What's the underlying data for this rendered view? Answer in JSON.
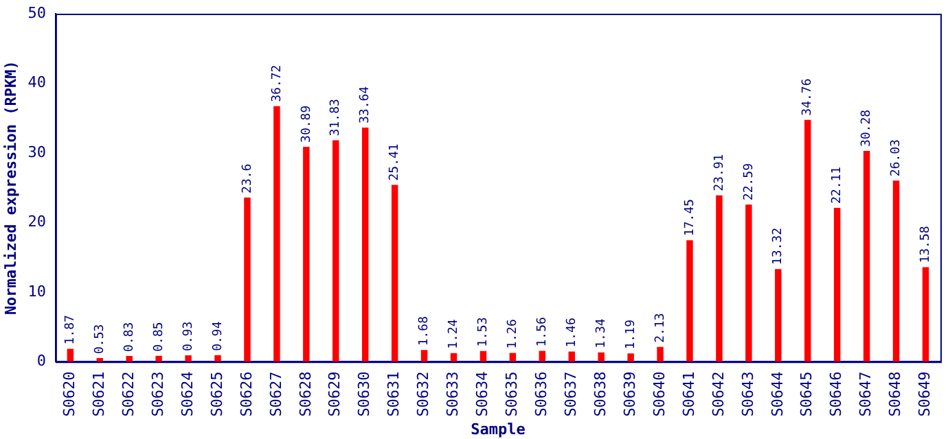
{
  "chart_data": {
    "type": "bar",
    "xlabel": "Sample",
    "ylabel": "Normalized expression (RPKM)",
    "categories": [
      "S0620",
      "S0621",
      "S0622",
      "S0623",
      "S0624",
      "S0625",
      "S0626",
      "S0627",
      "S0628",
      "S0629",
      "S0630",
      "S0631",
      "S0632",
      "S0633",
      "S0634",
      "S0635",
      "S0636",
      "S0637",
      "S0638",
      "S0639",
      "S0640",
      "S0641",
      "S0642",
      "S0643",
      "S0644",
      "S0645",
      "S0646",
      "S0647",
      "S0648",
      "S0649"
    ],
    "values": [
      1.87,
      0.53,
      0.83,
      0.85,
      0.93,
      0.94,
      23.6,
      36.72,
      30.89,
      31.83,
      33.64,
      25.41,
      1.68,
      1.24,
      1.53,
      1.26,
      1.56,
      1.46,
      1.34,
      1.19,
      2.13,
      17.45,
      23.91,
      22.59,
      13.32,
      34.76,
      22.11,
      30.28,
      26.03,
      13.58
    ],
    "color": "#ff0000",
    "ylim": [
      0,
      50
    ],
    "yticks": [
      0,
      10,
      20,
      30,
      40,
      50
    ],
    "data_labels": true,
    "grid": false,
    "legend": false
  }
}
